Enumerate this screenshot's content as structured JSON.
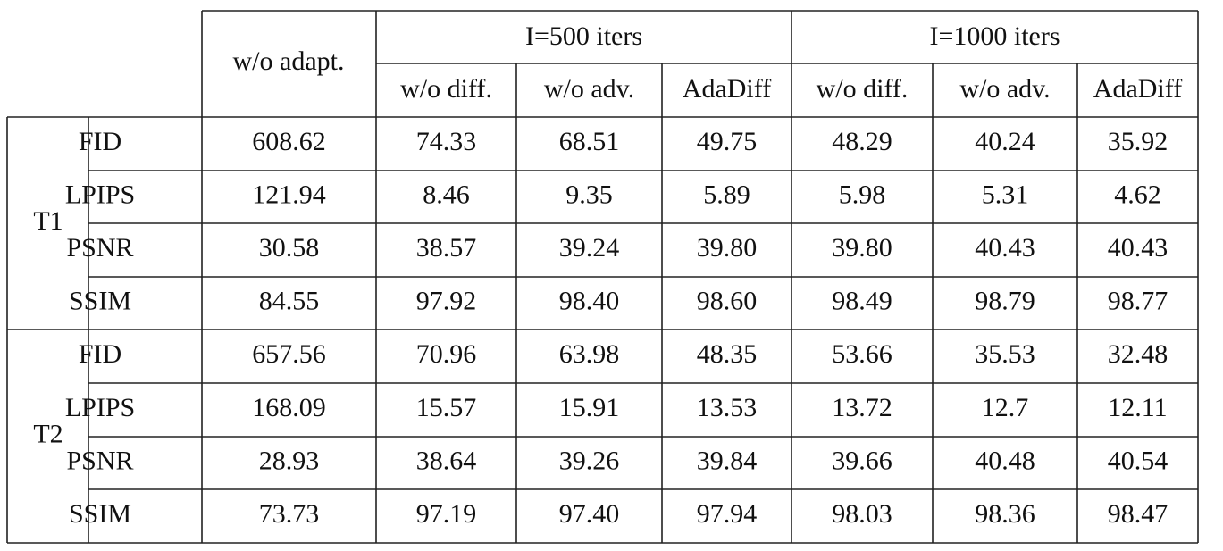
{
  "table": {
    "header": {
      "baseline": "w/o adapt.",
      "groups": [
        {
          "label": "I=500 iters",
          "columns": [
            "w/o diff.",
            "w/o adv.",
            "AdaDiff"
          ]
        },
        {
          "label": "I=1000 iters",
          "columns": [
            "w/o diff.",
            "w/o adv.",
            "AdaDiff"
          ]
        }
      ]
    },
    "row_groups": [
      {
        "label": "T1",
        "rows": [
          {
            "metric": "FID",
            "values": [
              "608.62",
              "74.33",
              "68.51",
              "49.75",
              "48.29",
              "40.24",
              "35.92"
            ]
          },
          {
            "metric": "LPIPS",
            "values": [
              "121.94",
              "8.46",
              "9.35",
              "5.89",
              "5.98",
              "5.31",
              "4.62"
            ]
          },
          {
            "metric": "PSNR",
            "values": [
              "30.58",
              "38.57",
              "39.24",
              "39.80",
              "39.80",
              "40.43",
              "40.43"
            ]
          },
          {
            "metric": "SSIM",
            "values": [
              "84.55",
              "97.92",
              "98.40",
              "98.60",
              "98.49",
              "98.79",
              "98.77"
            ]
          }
        ]
      },
      {
        "label": "T2",
        "rows": [
          {
            "metric": "FID",
            "values": [
              "657.56",
              "70.96",
              "63.98",
              "48.35",
              "53.66",
              "35.53",
              "32.48"
            ]
          },
          {
            "metric": "LPIPS",
            "values": [
              "168.09",
              "15.57",
              "15.91",
              "13.53",
              "13.72",
              "12.7",
              "12.11"
            ]
          },
          {
            "metric": "PSNR",
            "values": [
              "28.93",
              "38.64",
              "39.26",
              "39.84",
              "39.66",
              "40.48",
              "40.54"
            ]
          },
          {
            "metric": "SSIM",
            "values": [
              "73.73",
              "97.19",
              "97.40",
              "97.94",
              "98.03",
              "98.36",
              "98.47"
            ]
          }
        ]
      }
    ]
  }
}
